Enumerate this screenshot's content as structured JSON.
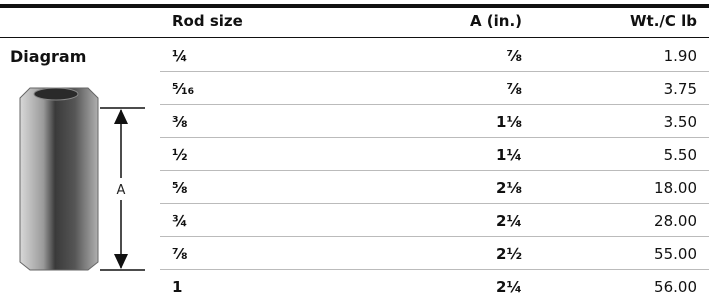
{
  "header": {
    "columns": [
      "Rod size",
      "A (in.)",
      "Wt./C lb"
    ]
  },
  "diagram": {
    "title": "Diagram",
    "dimension_label": "A"
  },
  "table": {
    "rows": [
      [
        "¼",
        "⅞",
        "1.90"
      ],
      [
        "⁵⁄₁₆",
        "⅞",
        "3.75"
      ],
      [
        "⅜",
        "1⅛",
        "3.50"
      ],
      [
        "½",
        "1¼",
        "5.50"
      ],
      [
        "⅝",
        "2⅛",
        "18.00"
      ],
      [
        "¾",
        "2¼",
        "28.00"
      ],
      [
        "⅞",
        "2½",
        "55.00"
      ],
      [
        "1",
        "2¼",
        "56.00"
      ]
    ]
  }
}
